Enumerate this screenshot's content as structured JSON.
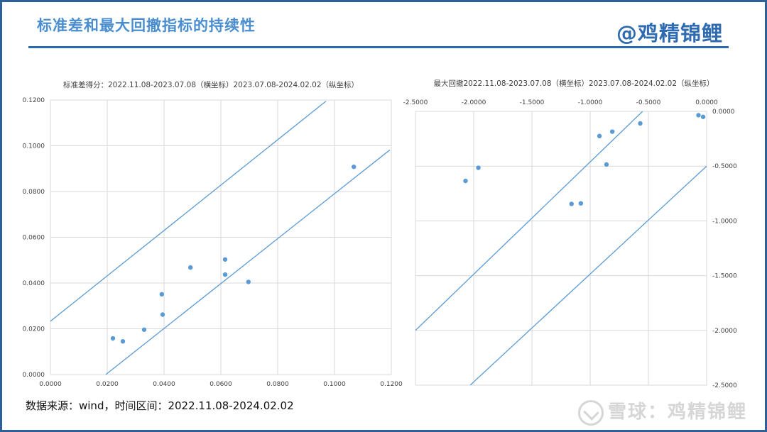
{
  "header": {
    "title": "标准差和最大回撤指标的持续性",
    "brand": "@鸡精锦鲤"
  },
  "footer": {
    "source": "数据来源：wind，时间区间：2022.11.08-2024.02.02",
    "watermark": "雪球：鸡精锦鲤"
  },
  "colors": {
    "point": "#5B9BD5",
    "line": "#5B9BD5",
    "grid": "#D9D9D9",
    "accent": "#2E6AAE"
  },
  "chart_data": [
    {
      "type": "scatter",
      "title": "标准差得分：2022.11.08-2023.07.08（横坐标）2023.07.08-2024.02.02（纵坐标）",
      "xlim": [
        0,
        0.12
      ],
      "ylim": [
        0,
        0.12
      ],
      "x_ticks": [
        "0.0000",
        "0.0200",
        "0.0400",
        "0.0600",
        "0.0800",
        "0.1000",
        "0.1200"
      ],
      "y_ticks": [
        "0.0000",
        "0.0200",
        "0.0400",
        "0.0600",
        "0.0800",
        "0.1000",
        "0.1200"
      ],
      "grid": true,
      "points": [
        {
          "x": 0.022,
          "y": 0.0158
        },
        {
          "x": 0.0255,
          "y": 0.0145
        },
        {
          "x": 0.033,
          "y": 0.0196
        },
        {
          "x": 0.0392,
          "y": 0.0351
        },
        {
          "x": 0.0395,
          "y": 0.0262
        },
        {
          "x": 0.0493,
          "y": 0.0468
        },
        {
          "x": 0.0615,
          "y": 0.0503
        },
        {
          "x": 0.0615,
          "y": 0.0437
        },
        {
          "x": 0.0697,
          "y": 0.0405
        },
        {
          "x": 0.1068,
          "y": 0.0908
        }
      ],
      "lines": [
        {
          "x1": 0,
          "y1": 0.0233,
          "x2": 0.097,
          "y2": 0.1195
        },
        {
          "x1": 0.0195,
          "y1": 0,
          "x2": 0.1195,
          "y2": 0.0982
        }
      ]
    },
    {
      "type": "scatter",
      "title": "最大回撤2022.11.08-2023.07.08（横坐标）2023.07.08-2024.02.02（纵坐标）",
      "xlim": [
        -2.5,
        0
      ],
      "ylim": [
        -2.5,
        0
      ],
      "x_ticks": [
        "-2.5000",
        "-2.0000",
        "-1.5000",
        "-1.0000",
        "-0.5000",
        "0.0000"
      ],
      "y_ticks": [
        "0.0000",
        "-0.5000",
        "-1.0000",
        "-1.5000",
        "-2.0000",
        "-2.5000"
      ],
      "x_axis_position": "top",
      "y_axis_position": "right",
      "grid": true,
      "points": [
        {
          "x": -2.07,
          "y": -0.635
        },
        {
          "x": -1.96,
          "y": -0.515
        },
        {
          "x": -1.16,
          "y": -0.845
        },
        {
          "x": -1.08,
          "y": -0.84
        },
        {
          "x": -0.92,
          "y": -0.225
        },
        {
          "x": -0.86,
          "y": -0.485
        },
        {
          "x": -0.81,
          "y": -0.185
        },
        {
          "x": -0.57,
          "y": -0.11
        },
        {
          "x": -0.07,
          "y": -0.035
        },
        {
          "x": -0.03,
          "y": -0.05
        }
      ],
      "lines": [
        {
          "x1": -2.5,
          "y1": -2.0,
          "x2": -0.55,
          "y2": 0
        },
        {
          "x1": -2.03,
          "y1": -2.5,
          "x2": 0,
          "y2": -0.5
        }
      ]
    }
  ]
}
